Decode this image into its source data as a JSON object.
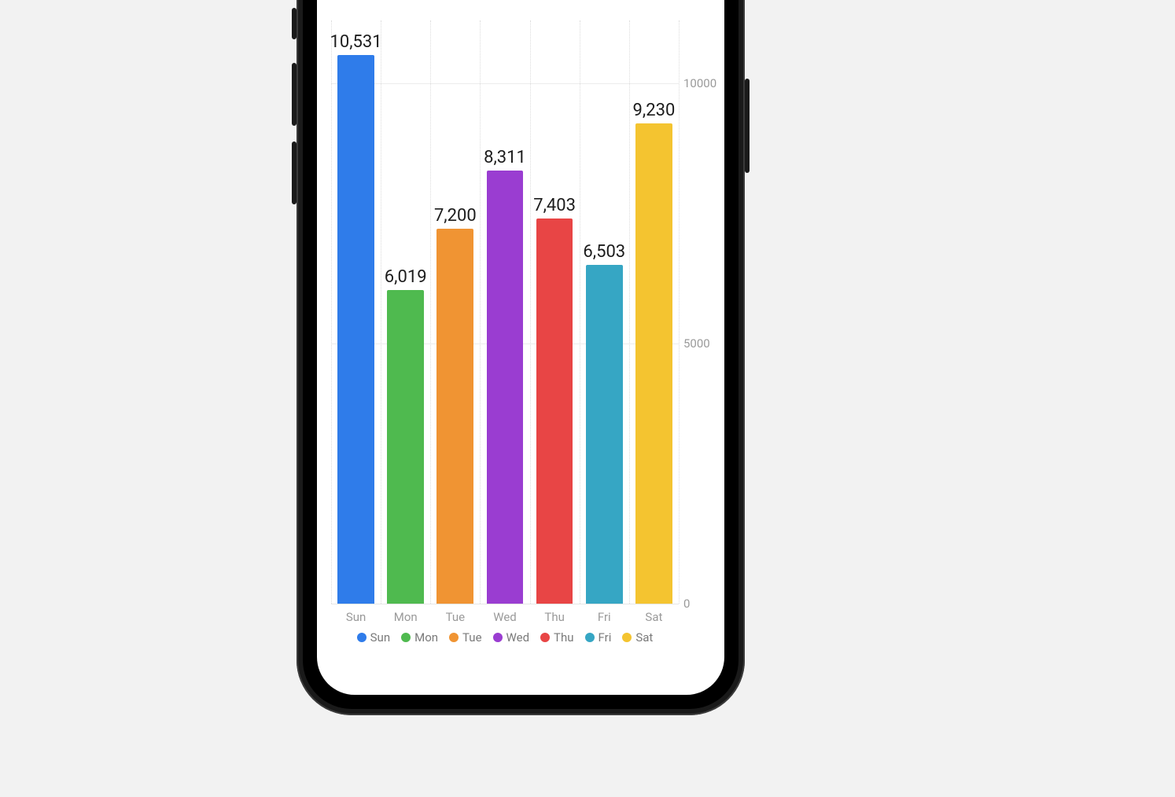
{
  "chart": {
    "type": "bar",
    "background_color": "#ffffff",
    "page_background": "#f2f2f2",
    "ymin": 0,
    "ymax": 11200,
    "yticks": [
      {
        "value": 0,
        "label": "0"
      },
      {
        "value": 5000,
        "label": "5000"
      },
      {
        "value": 10000,
        "label": "10000"
      }
    ],
    "grid_color": "#ececec",
    "xgrid_color": "#dcdcdc",
    "axis_label_color": "#9a9a9a",
    "value_label_color": "#1c1c1c",
    "value_label_fontsize": 22,
    "axis_label_fontsize": 15,
    "bar_width_ratio": 0.74,
    "series": [
      {
        "category": "Sun",
        "value": 10531,
        "label": "10,531",
        "color": "#2f7cea"
      },
      {
        "category": "Mon",
        "value": 6019,
        "label": "6,019",
        "color": "#4fba4f"
      },
      {
        "category": "Tue",
        "value": 7200,
        "label": "7,200",
        "color": "#f09433"
      },
      {
        "category": "Wed",
        "value": 8311,
        "label": "8,311",
        "color": "#9a3dd1"
      },
      {
        "category": "Thu",
        "value": 7403,
        "label": "7,403",
        "color": "#e84545"
      },
      {
        "category": "Fri",
        "value": 6503,
        "label": "6,503",
        "color": "#36a6c4"
      },
      {
        "category": "Sat",
        "value": 9230,
        "label": "9,230",
        "color": "#f4c430"
      }
    ],
    "legend": [
      {
        "label": "Sun",
        "color": "#2f7cea"
      },
      {
        "label": "Mon",
        "color": "#4fba4f"
      },
      {
        "label": "Tue",
        "color": "#f09433"
      },
      {
        "label": "Wed",
        "color": "#9a3dd1"
      },
      {
        "label": "Thu",
        "color": "#e84545"
      },
      {
        "label": "Fri",
        "color": "#36a6c4"
      },
      {
        "label": "Sat",
        "color": "#f4c430"
      }
    ]
  },
  "device": {
    "frame_color": "#1a1a1a"
  }
}
